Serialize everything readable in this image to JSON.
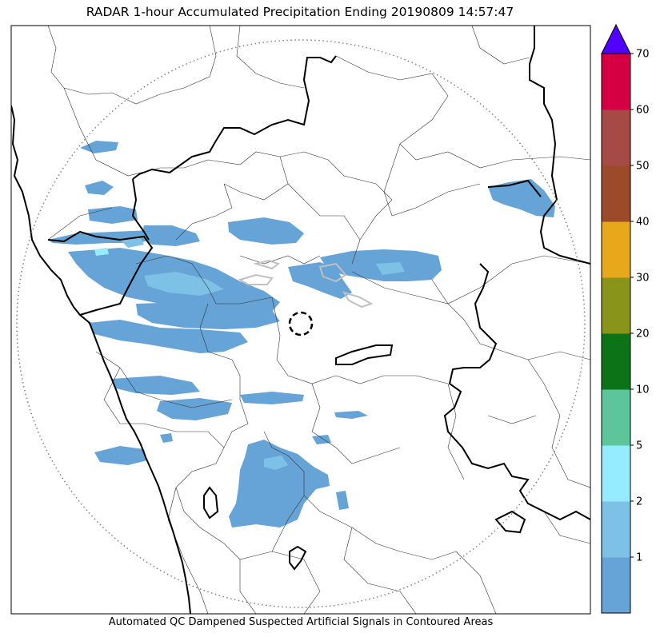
{
  "title": "RADAR 1-hour Accumulated Precipitation Ending 20190809 14:57:47",
  "footnote": "Automated QC Dampened Suspected Artificial Signals in Contoured Areas",
  "colorbar": {
    "extend": "max",
    "tick_labels": [
      "1",
      "2",
      "5",
      "10",
      "20",
      "30",
      "40",
      "50",
      "60",
      "70"
    ],
    "levels": [
      {
        "label": "<1",
        "color": "#66a3d6"
      },
      {
        "label": "1-2",
        "color": "#7ec1e6"
      },
      {
        "label": "2-5",
        "color": "#96ecff"
      },
      {
        "label": "5-10",
        "color": "#5cc59a"
      },
      {
        "label": "10-20",
        "color": "#0c7416"
      },
      {
        "label": "20-30",
        "color": "#8a9419"
      },
      {
        "label": "30-40",
        "color": "#e7a81c"
      },
      {
        "label": "40-50",
        "color": "#9b4b2a"
      },
      {
        "label": "50-60",
        "color": "#a74a46"
      },
      {
        "label": ">60",
        "color": "#d50044"
      }
    ],
    "over_color": "#5200ff"
  },
  "colors": {
    "coast_border": "#000000",
    "district_lines": "#333333",
    "range_ring": "#808080",
    "artificial_signal_contour": "#c0c0c0"
  }
}
